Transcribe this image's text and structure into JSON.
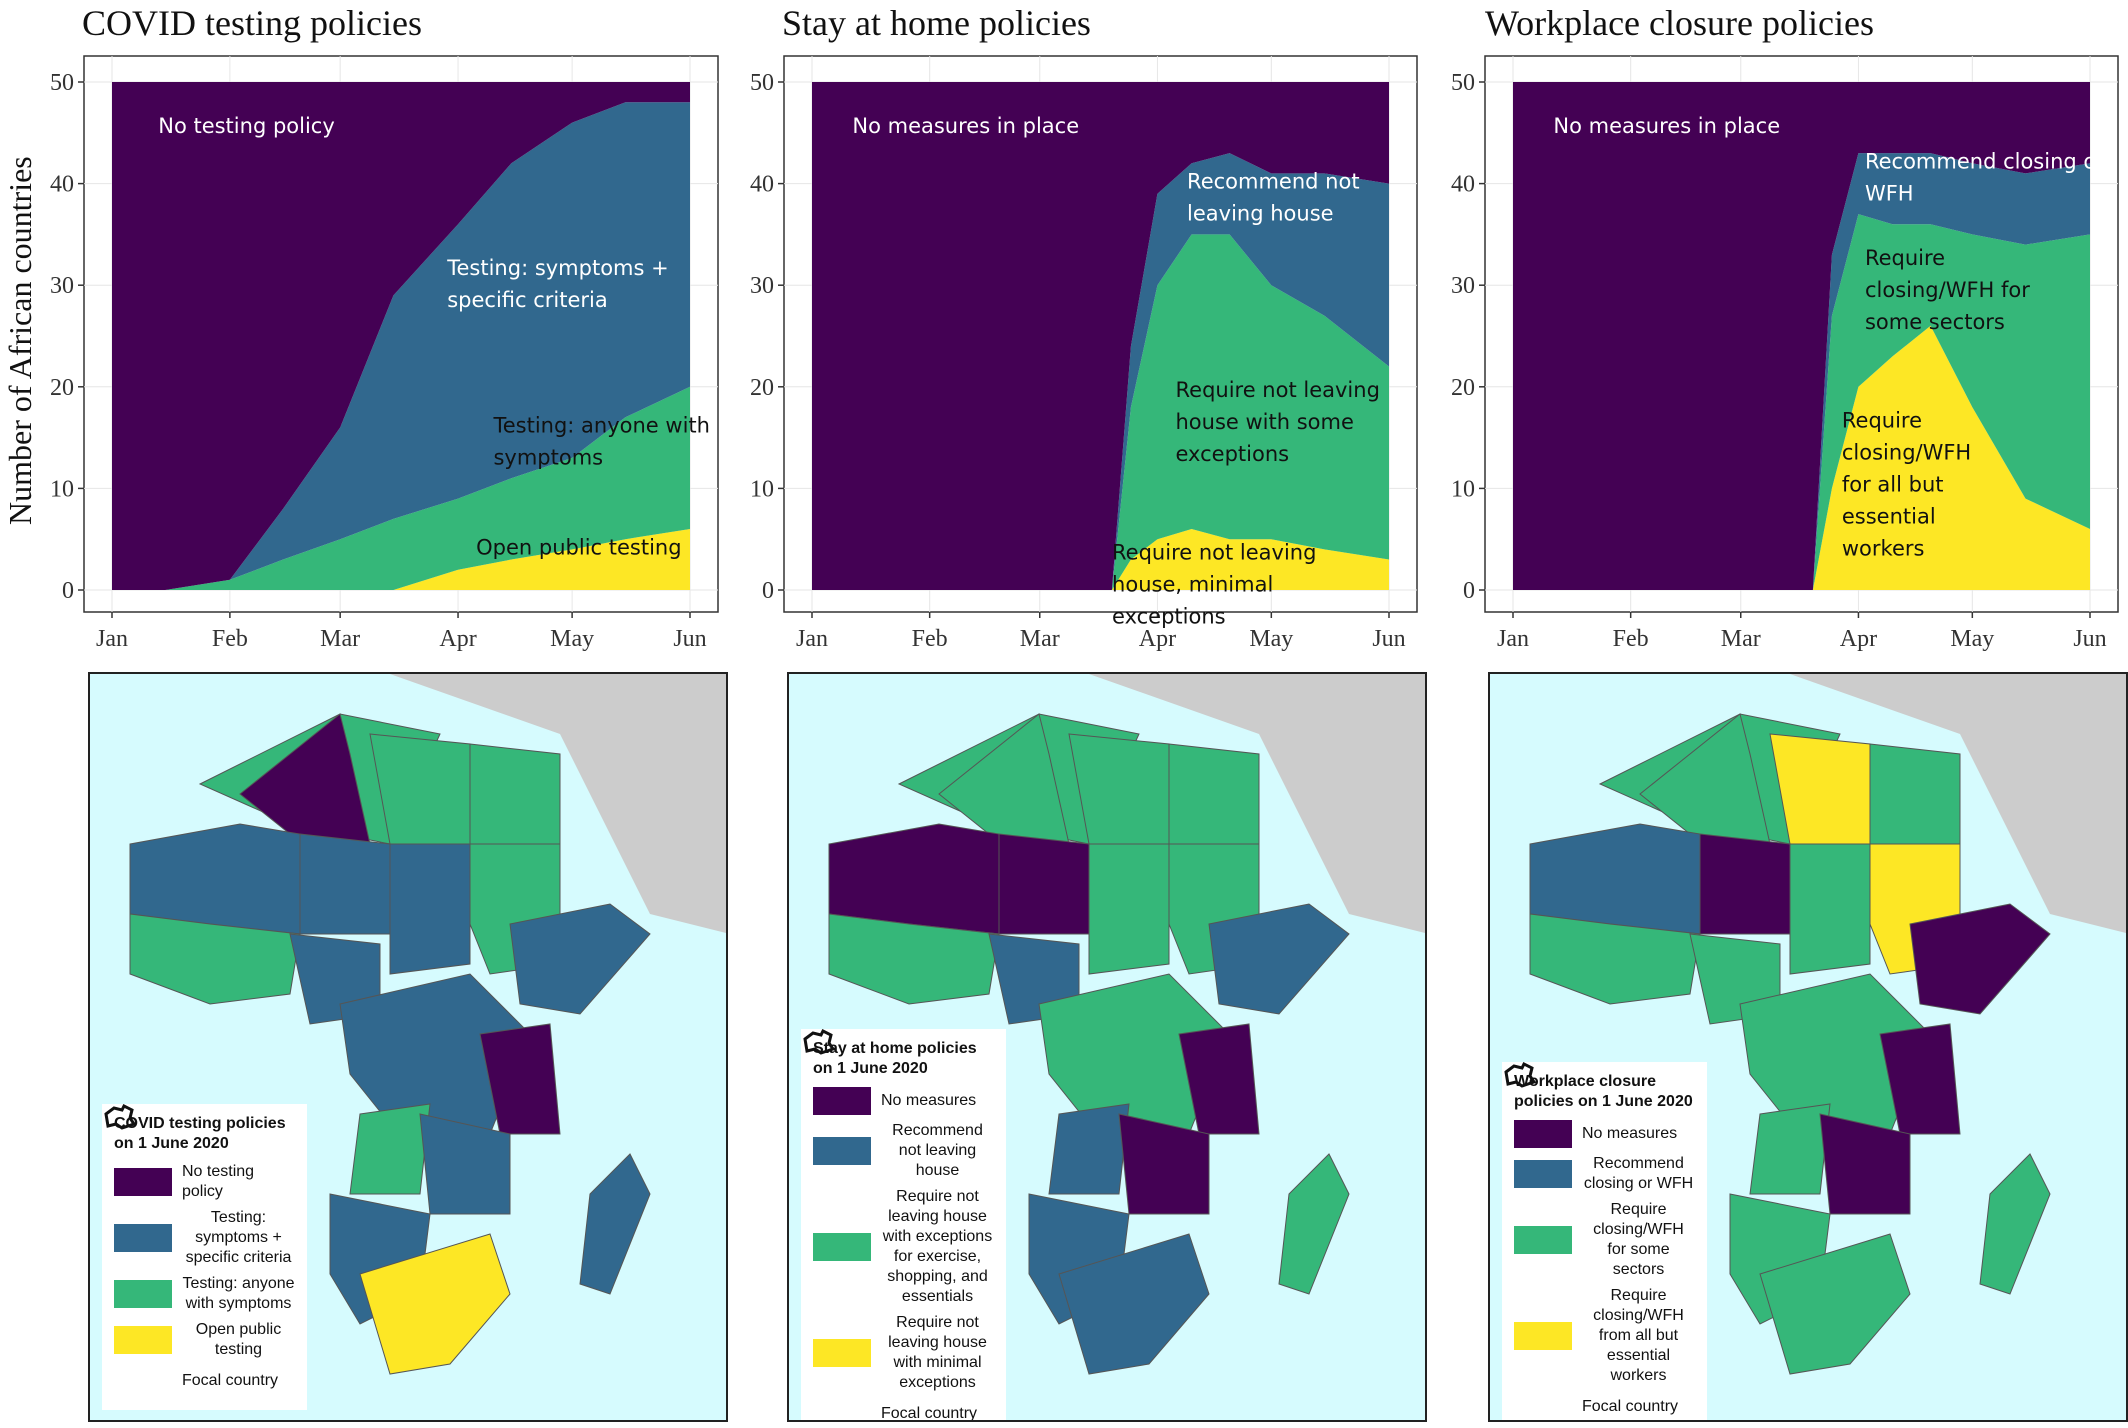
{
  "ylabel": "Number of African countries",
  "colors": {
    "none": "#440154",
    "rec": "#31688e",
    "req": "#35b779",
    "min": "#fde725",
    "sea": "#d6fbfe",
    "land_other": "#cccccc"
  },
  "xticks": [
    "Jan",
    "Feb",
    "Mar",
    "Apr",
    "May",
    "Jun"
  ],
  "yticks": [
    "0",
    "10",
    "20",
    "30",
    "40",
    "50"
  ],
  "chart_data": [
    {
      "type": "area",
      "title": "COVID testing policies",
      "ylabel": "Number of African countries",
      "ylim": [
        0,
        50
      ],
      "x": [
        "Jan",
        "Jan 15",
        "Feb",
        "Feb 15",
        "Mar",
        "Mar 15",
        "Apr",
        "Apr 15",
        "May",
        "May 15",
        "Jun"
      ],
      "series": [
        {
          "name": "Open public testing",
          "values": [
            0,
            0,
            0,
            0,
            0,
            0,
            2,
            3,
            4,
            5,
            6
          ]
        },
        {
          "name": "Testing: anyone with symptoms",
          "values": [
            0,
            0,
            1,
            3,
            5,
            7,
            7,
            8,
            9,
            12,
            14
          ]
        },
        {
          "name": "Testing: symptoms + specific criteria",
          "values": [
            0,
            0,
            0,
            5,
            11,
            22,
            27,
            31,
            33,
            31,
            28
          ]
        },
        {
          "name": "No testing policy",
          "values": [
            50,
            50,
            49,
            42,
            34,
            21,
            14,
            8,
            4,
            2,
            2
          ]
        }
      ],
      "labels": [
        "No testing policy",
        "Testing: symptoms + specific criteria",
        "Testing: anyone with symptoms",
        "Open public testing"
      ]
    },
    {
      "type": "area",
      "title": "Stay at home policies",
      "ylim": [
        0,
        50
      ],
      "x": [
        "Jan",
        "Feb",
        "Mar",
        "Mar 20",
        "Mar 25",
        "Apr",
        "Apr 10",
        "Apr 20",
        "May",
        "May 15",
        "Jun"
      ],
      "series": [
        {
          "name": "Require not leaving house, minimal exceptions",
          "values": [
            0,
            0,
            0,
            0,
            3,
            5,
            6,
            5,
            5,
            4,
            3
          ]
        },
        {
          "name": "Require not leaving house with some exceptions",
          "values": [
            0,
            0,
            0,
            0,
            15,
            25,
            29,
            30,
            25,
            23,
            19
          ]
        },
        {
          "name": "Recommend not leaving house",
          "values": [
            0,
            0,
            0,
            0,
            6,
            9,
            7,
            8,
            11,
            14,
            18
          ]
        },
        {
          "name": "No measures in place",
          "values": [
            50,
            50,
            50,
            50,
            26,
            11,
            8,
            7,
            9,
            9,
            10
          ]
        }
      ],
      "labels": [
        "No measures in place",
        "Recommend not leaving house",
        "Require not leaving house with some exceptions",
        "Require not leaving house, minimal exceptions"
      ]
    },
    {
      "type": "area",
      "title": "Workplace closure policies",
      "ylim": [
        0,
        50
      ],
      "x": [
        "Jan",
        "Feb",
        "Mar",
        "Mar 20",
        "Mar 25",
        "Apr",
        "Apr 10",
        "Apr 20",
        "May",
        "May 15",
        "Jun"
      ],
      "series": [
        {
          "name": "Require closing/WFH for all but essential workers",
          "values": [
            0,
            0,
            0,
            0,
            10,
            20,
            23,
            26,
            18,
            9,
            6
          ]
        },
        {
          "name": "Require closing/WFH for some sectors",
          "values": [
            0,
            0,
            0,
            0,
            17,
            17,
            13,
            10,
            17,
            25,
            29
          ]
        },
        {
          "name": "Recommend closing or WFH",
          "values": [
            0,
            0,
            0,
            0,
            6,
            6,
            7,
            7,
            7,
            7,
            7
          ]
        },
        {
          "name": "No measures in place",
          "values": [
            50,
            50,
            50,
            50,
            17,
            7,
            7,
            7,
            8,
            9,
            8
          ]
        }
      ],
      "labels": [
        "No measures in place",
        "Recommend closing or WFH",
        "Require closing/WFH for some sectors",
        "Require closing/WFH for all but essential workers"
      ]
    }
  ],
  "maps": [
    {
      "legend_title": "COVID testing policies on 1 June 2020",
      "items": [
        {
          "color": "#440154",
          "label": "No testing policy"
        },
        {
          "color": "#31688e",
          "label": "Testing: symptoms + specific criteria"
        },
        {
          "color": "#35b779",
          "label": "Testing: anyone with symptoms"
        },
        {
          "color": "#fde725",
          "label": "Open public testing"
        }
      ],
      "focal_label": "Focal country"
    },
    {
      "legend_title": "Stay at home policies on 1 June 2020",
      "items": [
        {
          "color": "#440154",
          "label": "No measures"
        },
        {
          "color": "#31688e",
          "label": "Recommend not leaving house"
        },
        {
          "color": "#35b779",
          "label": "Require not leaving house with exceptions for exercise, shopping, and essentials"
        },
        {
          "color": "#fde725",
          "label": "Require not leaving house with minimal exceptions"
        }
      ],
      "focal_label": "Focal country"
    },
    {
      "legend_title": "Workplace closure policies on 1 June 2020",
      "items": [
        {
          "color": "#440154",
          "label": "No measures"
        },
        {
          "color": "#31688e",
          "label": "Recommend closing or WFH"
        },
        {
          "color": "#35b779",
          "label": "Require closing/WFH for some sectors"
        },
        {
          "color": "#fde725",
          "label": "Require closing/WFH from all but essential workers"
        }
      ],
      "focal_label": "Focal country"
    }
  ]
}
